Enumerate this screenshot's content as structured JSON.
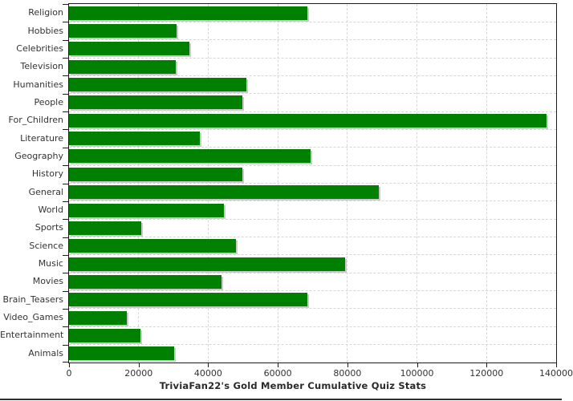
{
  "chart_data": {
    "type": "bar",
    "orientation": "horizontal",
    "title": "TriviaFan22's Gold Member Cumulative Quiz Stats",
    "xlabel": "",
    "ylabel": "",
    "categories": [
      "Religion",
      "Hobbies",
      "Celebrities",
      "Television",
      "Humanities",
      "People",
      "For_Children",
      "Literature",
      "Geography",
      "History",
      "General",
      "World",
      "Sports",
      "Science",
      "Music",
      "Movies",
      "Brain_Teasers",
      "Video_Games",
      "Entertainment",
      "Animals"
    ],
    "values": [
      68500,
      30800,
      34500,
      30600,
      51000,
      49900,
      137200,
      37500,
      69400,
      49900,
      89000,
      44600,
      20700,
      48000,
      79300,
      43900,
      68500,
      16600,
      20500,
      30100
    ],
    "xlim": [
      0,
      140000
    ],
    "xticks": [
      0,
      20000,
      40000,
      60000,
      80000,
      100000,
      120000,
      140000
    ],
    "grid": true,
    "legend": "none",
    "bar_color": "#008000",
    "bar_shadow_color": "#a5a5a5",
    "grid_color": "#d7d7d7",
    "axis_color": "#1c1c1c",
    "text_color": "#333333",
    "background_color": "#ffffff"
  }
}
